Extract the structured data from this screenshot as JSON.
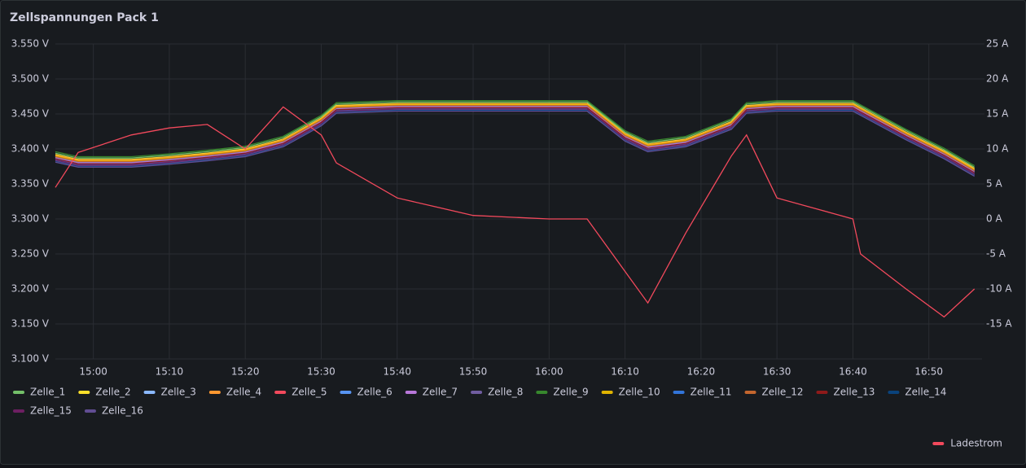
{
  "chart_data": {
    "type": "line",
    "title": "Zellspannungen Pack 1",
    "x": [
      "14:55",
      "14:58",
      "15:05",
      "15:10",
      "15:15",
      "15:20",
      "15:25",
      "15:30",
      "15:32",
      "15:40",
      "15:50",
      "16:00",
      "16:05",
      "16:10",
      "16:13",
      "16:18",
      "16:24",
      "16:26",
      "16:30",
      "16:40",
      "16:41",
      "16:47",
      "16:52",
      "16:56"
    ],
    "xlim": [
      "14:55",
      "16:57"
    ],
    "xticks": [
      "15:00",
      "15:10",
      "15:20",
      "15:30",
      "15:40",
      "15:50",
      "16:00",
      "16:10",
      "16:20",
      "16:30",
      "16:40",
      "16:50"
    ],
    "ylim": [
      3.1,
      3.55
    ],
    "yticks": [
      {
        "value": 3.1,
        "label": "3.100 V"
      },
      {
        "value": 3.15,
        "label": "3.150 V"
      },
      {
        "value": 3.2,
        "label": "3.200 V"
      },
      {
        "value": 3.25,
        "label": "3.250 V"
      },
      {
        "value": 3.3,
        "label": "3.300 V"
      },
      {
        "value": 3.35,
        "label": "3.350 V"
      },
      {
        "value": 3.4,
        "label": "3.400 V"
      },
      {
        "value": 3.45,
        "label": "3.450 V"
      },
      {
        "value": 3.5,
        "label": "3.500 V"
      },
      {
        "value": 3.55,
        "label": "3.550 V"
      }
    ],
    "y2lim": [
      -20,
      25
    ],
    "y2ticks": [
      {
        "value": -15,
        "label": "-15 A"
      },
      {
        "value": -10,
        "label": "-10 A"
      },
      {
        "value": -5,
        "label": "-5 A"
      },
      {
        "value": 0,
        "label": "0 A"
      },
      {
        "value": 5,
        "label": "5 A"
      },
      {
        "value": 10,
        "label": "10 A"
      },
      {
        "value": 15,
        "label": "15 A"
      },
      {
        "value": 20,
        "label": "20 A"
      },
      {
        "value": 25,
        "label": "25 A"
      }
    ],
    "grid": true,
    "legend": "bottom",
    "series": [
      {
        "name": "Zelle_1",
        "color": "#73bf69",
        "values": [
          3.394,
          3.387,
          3.387,
          3.391,
          3.396,
          3.402,
          3.416,
          3.446,
          3.464,
          3.467,
          3.467,
          3.467,
          3.467,
          3.424,
          3.409,
          3.416,
          3.441,
          3.464,
          3.467,
          3.467,
          3.461,
          3.426,
          3.399,
          3.374
        ]
      },
      {
        "name": "Zelle_2",
        "color": "#fade2a",
        "values": [
          3.392,
          3.385,
          3.385,
          3.389,
          3.394,
          3.4,
          3.414,
          3.444,
          3.462,
          3.465,
          3.465,
          3.465,
          3.465,
          3.422,
          3.407,
          3.414,
          3.439,
          3.462,
          3.465,
          3.465,
          3.459,
          3.424,
          3.397,
          3.372
        ]
      },
      {
        "name": "Zelle_3",
        "color": "#8ab8ff",
        "values": [
          3.39,
          3.383,
          3.383,
          3.387,
          3.392,
          3.398,
          3.412,
          3.442,
          3.46,
          3.463,
          3.463,
          3.463,
          3.463,
          3.42,
          3.405,
          3.412,
          3.437,
          3.46,
          3.463,
          3.463,
          3.457,
          3.422,
          3.395,
          3.37
        ]
      },
      {
        "name": "Zelle_4",
        "color": "#ff9830",
        "values": [
          3.391,
          3.384,
          3.384,
          3.388,
          3.393,
          3.399,
          3.413,
          3.443,
          3.461,
          3.464,
          3.464,
          3.464,
          3.464,
          3.421,
          3.406,
          3.413,
          3.438,
          3.461,
          3.464,
          3.464,
          3.458,
          3.423,
          3.396,
          3.371
        ]
      },
      {
        "name": "Zelle_5",
        "color": "#f2495c",
        "values": [
          3.389,
          3.382,
          3.382,
          3.386,
          3.391,
          3.397,
          3.411,
          3.441,
          3.459,
          3.462,
          3.462,
          3.462,
          3.462,
          3.419,
          3.404,
          3.411,
          3.436,
          3.459,
          3.462,
          3.462,
          3.456,
          3.421,
          3.394,
          3.369
        ]
      },
      {
        "name": "Zelle_6",
        "color": "#5794f2",
        "values": [
          3.388,
          3.381,
          3.381,
          3.385,
          3.39,
          3.396,
          3.41,
          3.44,
          3.458,
          3.461,
          3.461,
          3.461,
          3.461,
          3.418,
          3.403,
          3.41,
          3.435,
          3.458,
          3.461,
          3.461,
          3.455,
          3.42,
          3.393,
          3.368
        ]
      },
      {
        "name": "Zelle_7",
        "color": "#b877d9",
        "values": [
          3.387,
          3.38,
          3.38,
          3.384,
          3.389,
          3.395,
          3.409,
          3.439,
          3.457,
          3.46,
          3.46,
          3.46,
          3.46,
          3.417,
          3.402,
          3.409,
          3.434,
          3.457,
          3.46,
          3.46,
          3.454,
          3.419,
          3.392,
          3.367
        ]
      },
      {
        "name": "Zelle_8",
        "color": "#705da0",
        "values": [
          3.383,
          3.376,
          3.376,
          3.38,
          3.385,
          3.391,
          3.405,
          3.435,
          3.453,
          3.456,
          3.456,
          3.456,
          3.456,
          3.413,
          3.398,
          3.405,
          3.43,
          3.453,
          3.456,
          3.456,
          3.45,
          3.415,
          3.388,
          3.363
        ]
      },
      {
        "name": "Zelle_9",
        "color": "#37872d",
        "values": [
          3.396,
          3.389,
          3.389,
          3.393,
          3.398,
          3.404,
          3.418,
          3.448,
          3.466,
          3.469,
          3.469,
          3.469,
          3.469,
          3.426,
          3.411,
          3.418,
          3.443,
          3.466,
          3.469,
          3.469,
          3.463,
          3.428,
          3.401,
          3.376
        ]
      },
      {
        "name": "Zelle_10",
        "color": "#e0b400",
        "values": [
          3.39,
          3.383,
          3.383,
          3.387,
          3.392,
          3.398,
          3.412,
          3.442,
          3.46,
          3.463,
          3.463,
          3.463,
          3.463,
          3.42,
          3.405,
          3.412,
          3.437,
          3.46,
          3.463,
          3.463,
          3.457,
          3.422,
          3.395,
          3.37
        ]
      },
      {
        "name": "Zelle_11",
        "color": "#3274d9",
        "values": [
          3.385,
          3.378,
          3.378,
          3.382,
          3.387,
          3.393,
          3.407,
          3.437,
          3.455,
          3.458,
          3.458,
          3.458,
          3.458,
          3.415,
          3.4,
          3.407,
          3.432,
          3.455,
          3.458,
          3.458,
          3.452,
          3.417,
          3.39,
          3.365
        ]
      },
      {
        "name": "Zelle_12",
        "color": "#c4662e",
        "values": [
          3.389,
          3.382,
          3.382,
          3.386,
          3.391,
          3.397,
          3.411,
          3.441,
          3.459,
          3.462,
          3.462,
          3.462,
          3.462,
          3.419,
          3.404,
          3.411,
          3.436,
          3.459,
          3.462,
          3.462,
          3.456,
          3.421,
          3.394,
          3.369
        ]
      },
      {
        "name": "Zelle_13",
        "color": "#8e1a1a",
        "values": [
          3.386,
          3.379,
          3.379,
          3.383,
          3.388,
          3.394,
          3.408,
          3.438,
          3.456,
          3.459,
          3.459,
          3.459,
          3.459,
          3.416,
          3.401,
          3.408,
          3.433,
          3.456,
          3.459,
          3.459,
          3.453,
          3.418,
          3.391,
          3.366
        ]
      },
      {
        "name": "Zelle_14",
        "color": "#0a437c",
        "values": [
          3.382,
          3.375,
          3.375,
          3.379,
          3.384,
          3.39,
          3.404,
          3.434,
          3.452,
          3.455,
          3.455,
          3.455,
          3.455,
          3.412,
          3.397,
          3.404,
          3.429,
          3.452,
          3.455,
          3.455,
          3.449,
          3.414,
          3.387,
          3.362
        ]
      },
      {
        "name": "Zelle_15",
        "color": "#6d1f62",
        "values": [
          3.384,
          3.377,
          3.377,
          3.381,
          3.386,
          3.392,
          3.406,
          3.436,
          3.454,
          3.457,
          3.457,
          3.457,
          3.457,
          3.414,
          3.399,
          3.406,
          3.431,
          3.454,
          3.457,
          3.457,
          3.451,
          3.416,
          3.389,
          3.364
        ]
      },
      {
        "name": "Zelle_16",
        "color": "#614d93",
        "values": [
          3.381,
          3.374,
          3.374,
          3.378,
          3.383,
          3.389,
          3.403,
          3.433,
          3.451,
          3.454,
          3.454,
          3.454,
          3.454,
          3.411,
          3.396,
          3.403,
          3.428,
          3.451,
          3.454,
          3.454,
          3.448,
          3.413,
          3.386,
          3.361
        ]
      },
      {
        "name": "Ladestrom",
        "color": "#f2495c",
        "axis": "y2",
        "values": [
          4.5,
          9.5,
          12,
          13,
          13.5,
          10,
          16,
          12,
          8,
          3,
          0.5,
          0,
          0,
          -7.5,
          -12,
          -2,
          9,
          12,
          3,
          0,
          -5,
          -10,
          -14,
          -10
        ]
      }
    ]
  }
}
